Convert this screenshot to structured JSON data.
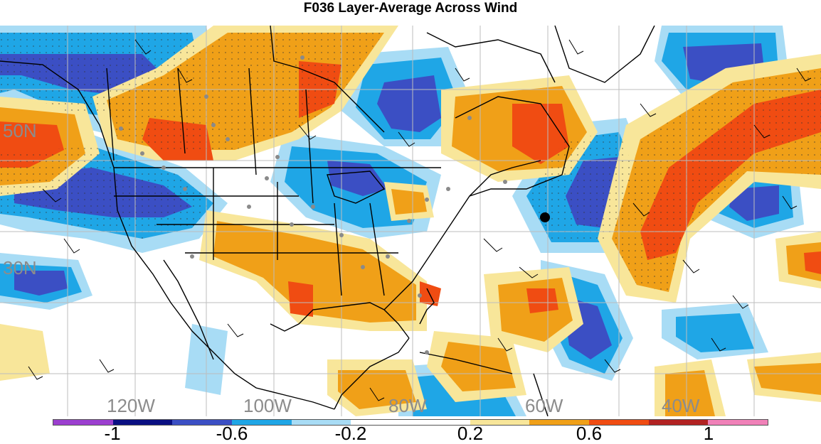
{
  "title": "F036 Layer-Average Across Wind",
  "map": {
    "lat_labels": [
      "50N",
      "30N"
    ],
    "lon_labels": [
      "120W",
      "100W",
      "80W",
      "60W",
      "40W"
    ]
  },
  "colorbar": {
    "colors": [
      "#9b3fcf",
      "#0a0f82",
      "#3b4fc4",
      "#1fa6e6",
      "#a8dcf5",
      "#ffffff",
      "#ffffff",
      "#f8e69a",
      "#f0a018",
      "#f04c12",
      "#b22222",
      "#f081b8"
    ],
    "labels": [
      "-1",
      "-0.6",
      "-0.2",
      "0.2",
      "0.6",
      "1"
    ]
  },
  "colors": {
    "dark_blue": "#3b4fc4",
    "mid_blue": "#1fa6e6",
    "light_blue": "#a8dcf5",
    "light_yellow": "#f8e69a",
    "orange": "#f0a018",
    "red_orange": "#f04c12",
    "grid": "#bdbdbd"
  }
}
